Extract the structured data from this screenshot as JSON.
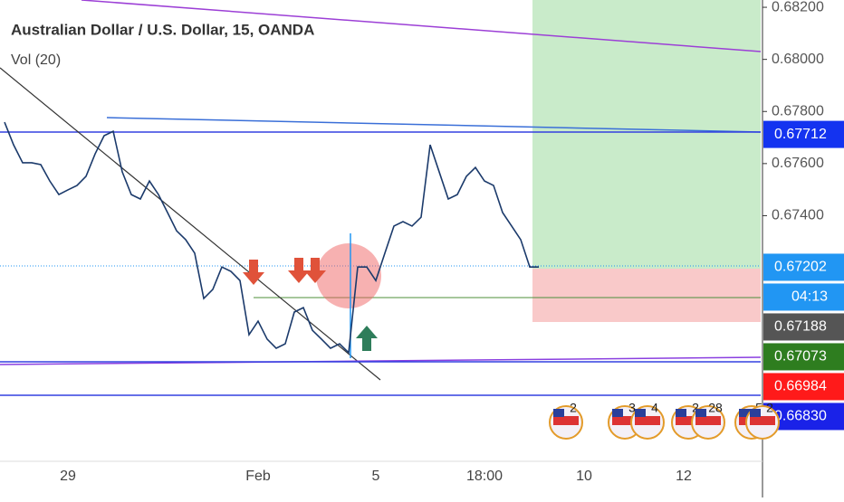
{
  "chart_data": {
    "type": "line",
    "title": "Australian Dollar / U.S. Dollar, 15, OANDA",
    "subtitle": "Vol (20)",
    "color": "#1b3a6b",
    "categories": [
      null,
      null,
      null,
      null,
      null,
      null,
      null,
      "29",
      null,
      null,
      null,
      null,
      null,
      null,
      null,
      null,
      null,
      null,
      null,
      null,
      null,
      null,
      null,
      null,
      null,
      null,
      null,
      null,
      "Feb",
      null,
      null,
      null,
      null,
      null,
      null,
      null,
      null,
      null,
      null,
      null,
      null,
      "5",
      null,
      null,
      null,
      null,
      null,
      null,
      null,
      null,
      null,
      null,
      null,
      "18:00",
      null,
      null,
      null,
      null,
      null,
      null,
      null,
      null,
      null,
      null,
      "10",
      null,
      null,
      null,
      null,
      null,
      null,
      null,
      null,
      null,
      null,
      "12",
      null,
      null,
      null,
      null,
      null,
      null,
      null,
      null
    ],
    "values": [
      0.67759,
      0.67672,
      0.67603,
      0.67603,
      0.67596,
      0.67533,
      0.67481,
      0.67499,
      0.67516,
      0.67551,
      0.67637,
      0.67707,
      0.67724,
      0.67568,
      0.67481,
      0.67464,
      0.67533,
      0.67481,
      0.67412,
      0.67342,
      0.67308,
      0.67256,
      0.67082,
      0.67117,
      0.67203,
      0.67186,
      0.67151,
      0.66943,
      0.66995,
      0.66926,
      0.66891,
      0.66908,
      0.6703,
      0.67047,
      0.6696,
      0.66926,
      0.66891,
      0.66908,
      0.66874,
      0.67203,
      0.67203,
      0.67151,
      0.67256,
      0.6736,
      0.67377,
      0.6736,
      0.67394,
      0.67672,
      0.67568,
      0.67464,
      0.67481,
      0.67551,
      0.67585,
      0.67533,
      0.67516,
      0.67412,
      0.6736,
      0.67308,
      0.67203,
      0.67203,
      null,
      null,
      null,
      null,
      null,
      null,
      null,
      null,
      null,
      null,
      null,
      null,
      null,
      null,
      null,
      null,
      null,
      null,
      null,
      null,
      null,
      null,
      null,
      null
    ],
    "ylim": [
      0.66457,
      0.68228
    ],
    "yticks": [
      {
        "value": 0.682,
        "label": "0.68200"
      },
      {
        "value": 0.68,
        "label": "0.68000"
      },
      {
        "value": 0.678,
        "label": "0.67800"
      },
      {
        "value": 0.676,
        "label": "0.67600"
      },
      {
        "value": 0.674,
        "label": "0.67400"
      }
    ],
    "price_labels": [
      {
        "value": 0.67712,
        "label": "0.67712",
        "color": "#1433f0"
      },
      {
        "value": 0.67202,
        "label": "0.67202",
        "color": "#2196f3"
      },
      {
        "label": "04:13",
        "color": "#2196f3"
      },
      {
        "value": 0.67188,
        "label": "0.67188",
        "color": "#555555"
      },
      {
        "value": 0.67073,
        "label": "0.67073",
        "color": "#2e7d1f"
      },
      {
        "value": 0.66984,
        "label": "0.66984",
        "color": "#ff1a1a"
      },
      {
        "value": 0.6683,
        "label": "0.66830",
        "color": "#1a22e8"
      }
    ],
    "events": [
      2,
      3,
      4,
      2,
      28,
      5,
      2
    ]
  }
}
